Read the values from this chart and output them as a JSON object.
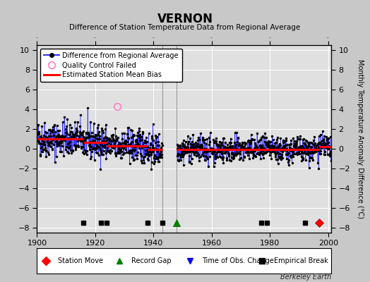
{
  "title": "VERNON",
  "subtitle": "Difference of Station Temperature Data from Regional Average",
  "ylabel_right": "Monthly Temperature Anomaly Difference (°C)",
  "xlim": [
    1900,
    2001
  ],
  "ylim": [
    -8.5,
    10.5
  ],
  "yticks": [
    -8,
    -6,
    -4,
    -2,
    0,
    2,
    4,
    6,
    8,
    10
  ],
  "xticks": [
    1900,
    1920,
    1940,
    1960,
    1980,
    2000
  ],
  "fig_bg_color": "#c8c8c8",
  "plot_bg_color": "#e0e0e0",
  "watermark": "Berkeley Earth",
  "event_markers": {
    "station_move": [
      1997
    ],
    "record_gap": [
      1948
    ],
    "time_obs_change": [],
    "empirical_break": [
      1916,
      1922,
      1924,
      1938,
      1943,
      1977,
      1979,
      1992
    ]
  },
  "bias_segments": [
    {
      "x_start": 1900,
      "x_end": 1916,
      "bias": 1.0
    },
    {
      "x_start": 1916,
      "x_end": 1922,
      "bias": 0.65
    },
    {
      "x_start": 1922,
      "x_end": 1924,
      "bias": 0.65
    },
    {
      "x_start": 1924,
      "x_end": 1938,
      "bias": 0.3
    },
    {
      "x_start": 1938,
      "x_end": 1943,
      "bias": -0.1
    },
    {
      "x_start": 1948,
      "x_end": 1977,
      "bias": -0.05
    },
    {
      "x_start": 1977,
      "x_end": 1979,
      "bias": -0.05
    },
    {
      "x_start": 1979,
      "x_end": 1992,
      "bias": -0.1
    },
    {
      "x_start": 1992,
      "x_end": 1997,
      "bias": -0.1
    },
    {
      "x_start": 1997,
      "x_end": 2001,
      "bias": 0.2
    }
  ],
  "gap_start": 1943,
  "gap_end": 1948,
  "qc_failed": [
    [
      1927.5,
      4.3
    ]
  ],
  "seed": 42
}
